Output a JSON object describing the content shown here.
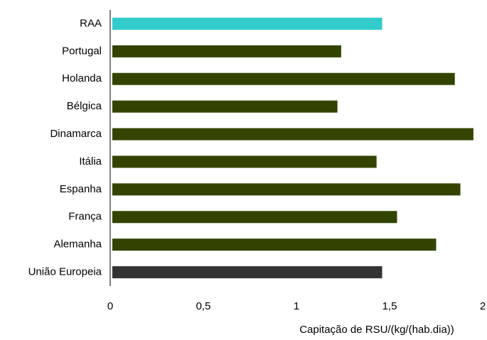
{
  "chart_data": {
    "type": "barh",
    "x_label": "Capitação de RSU/(kg/(hab.dia))",
    "categories": [
      "RAA",
      "Portugal",
      "Holanda",
      "Bélgica",
      "Dinamarca",
      "Itália",
      "Espanha",
      "França",
      "Alemanha",
      "União Europeia"
    ],
    "values": [
      1.46,
      1.24,
      1.85,
      1.22,
      1.95,
      1.43,
      1.88,
      1.54,
      1.75,
      1.46
    ],
    "colors": [
      "#33cccc",
      "#334400",
      "#334400",
      "#334400",
      "#334400",
      "#334400",
      "#334400",
      "#334400",
      "#334400",
      "#333333"
    ],
    "xlim": [
      0,
      2
    ],
    "xticks": [
      0,
      {
        "value": 0.5,
        "label": "0,5"
      },
      1,
      {
        "value": 1.5,
        "label": "1,5"
      },
      2
    ],
    "grid": false
  }
}
